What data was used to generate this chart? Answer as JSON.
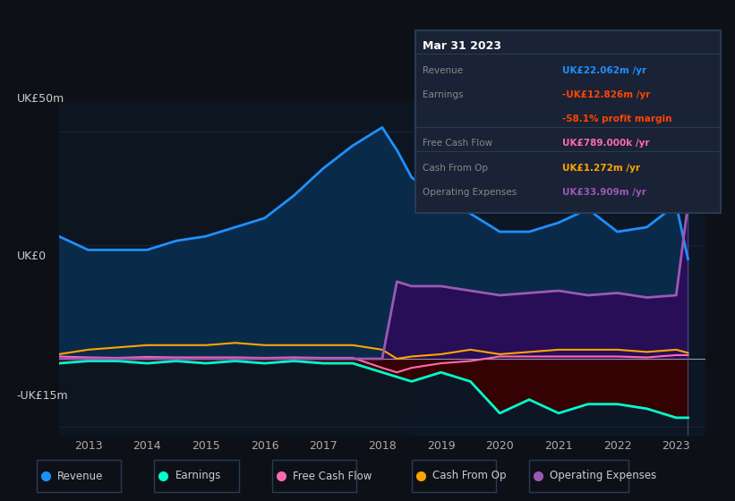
{
  "background_color": "#0d1117",
  "plot_bg_color": "#0d1520",
  "ylabel_top": "UK£50m",
  "ylabel_zero": "UK£0",
  "ylabel_bottom": "-UK£15m",
  "years": [
    2012.5,
    2013,
    2013.5,
    2014,
    2014.5,
    2015,
    2015.5,
    2016,
    2016.5,
    2017,
    2017.5,
    2018,
    2018.25,
    2018.5,
    2019,
    2019.5,
    2020,
    2020.5,
    2021,
    2021.5,
    2022,
    2022.5,
    2023,
    2023.2
  ],
  "revenue": [
    27,
    24,
    24,
    24,
    26,
    27,
    29,
    31,
    36,
    42,
    47,
    51,
    46,
    40,
    35,
    32,
    28,
    28,
    30,
    33,
    28,
    29,
    34,
    22
  ],
  "earnings": [
    -1,
    -0.5,
    -0.5,
    -1,
    -0.5,
    -1,
    -0.5,
    -1,
    -0.5,
    -1,
    -1,
    -3,
    -4,
    -5,
    -3,
    -5,
    -12,
    -9,
    -12,
    -10,
    -10,
    -11,
    -13,
    -13
  ],
  "free_cash_flow": [
    0.5,
    0.3,
    0.2,
    0.4,
    0.3,
    0.3,
    0.3,
    0.2,
    0.3,
    0.2,
    0.2,
    -2,
    -3,
    -2,
    -1,
    -0.5,
    0.5,
    0.5,
    0.5,
    0.5,
    0.5,
    0.3,
    0.8,
    0.8
  ],
  "cash_from_op": [
    1,
    2,
    2.5,
    3,
    3,
    3,
    3.5,
    3,
    3,
    3,
    3,
    2,
    0,
    0.5,
    1,
    2,
    1,
    1.5,
    2,
    2,
    2,
    1.5,
    2,
    1.3
  ],
  "operating_expenses": [
    0,
    0,
    0,
    0,
    0,
    0,
    0,
    0,
    0,
    0,
    0,
    0,
    17,
    16,
    16,
    15,
    14,
    14.5,
    15,
    14,
    14.5,
    13.5,
    14,
    34
  ],
  "revenue_color": "#1e90ff",
  "earnings_color": "#00ffcc",
  "free_cash_flow_color": "#ff69b4",
  "cash_from_op_color": "#ffa500",
  "operating_expenses_color": "#9b59b6",
  "revenue_fill_color": "#0a2a4a",
  "earnings_fill_color": "#3a0000",
  "operating_expenses_fill_color": "#2d0a5a",
  "tooltip_bg": "#1a2235",
  "tooltip_border": "#2a3a55",
  "xmin": 2012.5,
  "xmax": 2023.5,
  "ymin": -17,
  "ymax": 57,
  "info_box": {
    "title": "Mar 31 2023",
    "rows": [
      {
        "label": "Revenue",
        "value": "UK£22.062m /yr",
        "value_color": "#1e90ff"
      },
      {
        "label": "Earnings",
        "value": "-UK£12.826m /yr",
        "value_color": "#ff4500"
      },
      {
        "label": "",
        "value": "-58.1% profit margin",
        "value_color": "#ff4500"
      },
      {
        "label": "Free Cash Flow",
        "value": "UK£789.000k /yr",
        "value_color": "#ff69b4"
      },
      {
        "label": "Cash From Op",
        "value": "UK£1.272m /yr",
        "value_color": "#ffa500"
      },
      {
        "label": "Operating Expenses",
        "value": "UK£33.909m /yr",
        "value_color": "#9b59b6"
      }
    ]
  },
  "legend_items": [
    {
      "label": "Revenue",
      "color": "#1e90ff"
    },
    {
      "label": "Earnings",
      "color": "#00ffcc"
    },
    {
      "label": "Free Cash Flow",
      "color": "#ff69b4"
    },
    {
      "label": "Cash From Op",
      "color": "#ffa500"
    },
    {
      "label": "Operating Expenses",
      "color": "#9b59b6"
    }
  ]
}
